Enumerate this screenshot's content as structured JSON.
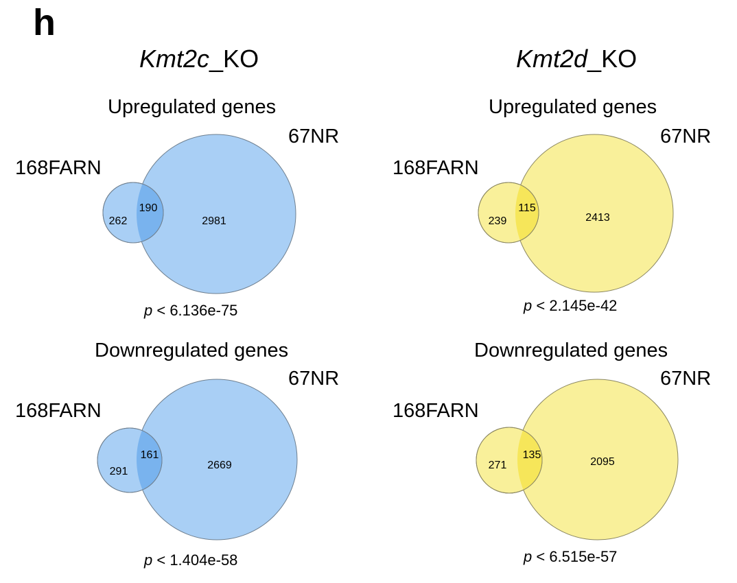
{
  "panel_letter": "h",
  "columns": [
    {
      "title_gene": "Kmt2c",
      "title_suffix": "_KO",
      "fill_color": "#a9cff5",
      "overlap_color": "#79b3ee",
      "venns": [
        {
          "section": "Upregulated genes",
          "set_a": "168FARN",
          "set_b": "67NR",
          "only_a": "262",
          "both": "190",
          "only_b": "2981",
          "p_symbol": "p",
          "p_text": " < 6.136e-75"
        },
        {
          "section": "Downregulated genes",
          "set_a": "168FARN",
          "set_b": "67NR",
          "only_a": "291",
          "both": "161",
          "only_b": "2669",
          "p_symbol": "p",
          "p_text": " < 1.404e-58"
        }
      ]
    },
    {
      "title_gene": "Kmt2d",
      "title_suffix": "_KO",
      "fill_color": "#f9f09a",
      "overlap_color": "#f6e65a",
      "venns": [
        {
          "section": "Upregulated genes",
          "set_a": "168FARN",
          "set_b": "67NR",
          "only_a": "239",
          "both": "115",
          "only_b": "2413",
          "p_symbol": "p",
          "p_text": " < 2.145e-42"
        },
        {
          "section": "Downregulated genes",
          "set_a": "168FARN",
          "set_b": "67NR",
          "only_a": "271",
          "both": "135",
          "only_b": "2095",
          "p_symbol": "p",
          "p_text": " < 6.515e-57"
        }
      ]
    }
  ]
}
